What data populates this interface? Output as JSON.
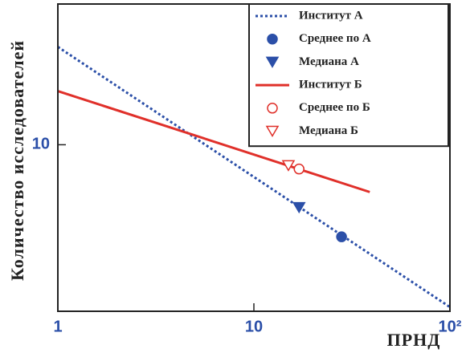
{
  "chart_data": {
    "type": "line",
    "xlabel": "ПРНД",
    "ylabel": "Количество исследователей",
    "xscale": "log",
    "yscale": "log",
    "xlim": [
      1,
      100
    ],
    "ylim": [
      1,
      70
    ],
    "xticks": [
      1,
      10,
      {
        "value": 100,
        "label": "10²"
      }
    ],
    "yticks": [
      10
    ],
    "legend": "upper right",
    "series": [
      {
        "name": "Институт А",
        "color": "#2b4fa8",
        "style": "dotted",
        "x": [
          1,
          100
        ],
        "values": [
          38.7,
          1.06
        ]
      },
      {
        "name": "Среднее по А",
        "color": "#2b4fa8",
        "marker": "circle",
        "filled": true,
        "x": [
          28
        ],
        "values": [
          2.8
        ]
      },
      {
        "name": "Медиана А",
        "color": "#2b4fa8",
        "marker": "triangle-down",
        "filled": true,
        "x": [
          17
        ],
        "values": [
          4.2
        ]
      },
      {
        "name": "Институт Б",
        "color": "#e0302a",
        "style": "solid",
        "x": [
          1,
          39
        ],
        "values": [
          21,
          5.2
        ]
      },
      {
        "name": "Среднее по Б",
        "color": "#e0302a",
        "marker": "circle",
        "filled": false,
        "x": [
          17
        ],
        "values": [
          7.15
        ]
      },
      {
        "name": "Медиана Б",
        "color": "#e0302a",
        "marker": "triangle-down",
        "filled": false,
        "x": [
          15
        ],
        "values": [
          7.5
        ]
      }
    ]
  }
}
